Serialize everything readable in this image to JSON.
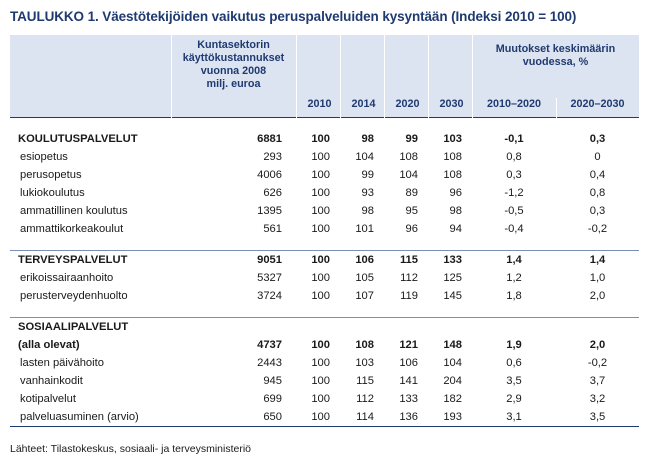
{
  "title": "TAULUKKO 1. Väestötekijöiden vaikutus peruspalveluiden kysyntään (Indeksi 2010 = 100)",
  "headers": {
    "spend_line1": "Kuntasektorin",
    "spend_line2": "käyttökustannukset",
    "spend_line3": "vuonna 2008",
    "spend_line4": "milj. euroa",
    "y2010": "2010",
    "y2014": "2014",
    "y2020": "2020",
    "y2030": "2030",
    "change_line1": "Muutokset keskimäärin",
    "change_line2": "vuodessa, %",
    "p1": "2010–2020",
    "p2": "2020–2030"
  },
  "groups": [
    {
      "category": {
        "label": "KOULUTUSPALVELUT",
        "spend": "6881",
        "y2010": "100",
        "y2014": "98",
        "y2020": "99",
        "y2030": "103",
        "c1": "-0,1",
        "c2": "0,3"
      },
      "rows": [
        {
          "label": "esiopetus",
          "spend": "293",
          "y2010": "100",
          "y2014": "104",
          "y2020": "108",
          "y2030": "108",
          "c1": "0,8",
          "c2": "0"
        },
        {
          "label": "perusopetus",
          "spend": "4006",
          "y2010": "100",
          "y2014": "99",
          "y2020": "104",
          "y2030": "108",
          "c1": "0,3",
          "c2": "0,4"
        },
        {
          "label": "lukiokoulutus",
          "spend": "626",
          "y2010": "100",
          "y2014": "93",
          "y2020": "89",
          "y2030": "96",
          "c1": "-1,2",
          "c2": "0,8"
        },
        {
          "label": "ammatillinen koulutus",
          "spend": "1395",
          "y2010": "100",
          "y2014": "98",
          "y2020": "95",
          "y2030": "98",
          "c1": "-0,5",
          "c2": "0,3"
        },
        {
          "label": "ammattikorkeakoulut",
          "spend": "561",
          "y2010": "100",
          "y2014": "101",
          "y2020": "96",
          "y2030": "94",
          "c1": "-0,4",
          "c2": "-0,2"
        }
      ]
    },
    {
      "category": {
        "label": "TERVEYSPALVELUT",
        "spend": "9051",
        "y2010": "100",
        "y2014": "106",
        "y2020": "115",
        "y2030": "133",
        "c1": "1,4",
        "c2": "1,4"
      },
      "rows": [
        {
          "label": "erikoissairaanhoito",
          "spend": "5327",
          "y2010": "100",
          "y2014": "105",
          "y2020": "112",
          "y2030": "125",
          "c1": "1,2",
          "c2": "1,0"
        },
        {
          "label": "perusterveydenhuolto",
          "spend": "3724",
          "y2010": "100",
          "y2014": "107",
          "y2020": "119",
          "y2030": "145",
          "c1": "1,8",
          "c2": "2,0"
        }
      ]
    },
    {
      "category": {
        "label": "SOSIAALIPALVELUT",
        "label2": "(alla olevat)",
        "spend": "4737",
        "y2010": "100",
        "y2014": "108",
        "y2020": "121",
        "y2030": "148",
        "c1": "1,9",
        "c2": "2,0"
      },
      "rows": [
        {
          "label": "lasten päivähoito",
          "spend": "2443",
          "y2010": "100",
          "y2014": "103",
          "y2020": "106",
          "y2030": "104",
          "c1": "0,6",
          "c2": "-0,2"
        },
        {
          "label": "vanhainkodit",
          "spend": "945",
          "y2010": "100",
          "y2014": "115",
          "y2020": "141",
          "y2030": "204",
          "c1": "3,5",
          "c2": "3,7"
        },
        {
          "label": "kotipalvelut",
          "spend": "699",
          "y2010": "100",
          "y2014": "112",
          "y2020": "133",
          "y2030": "182",
          "c1": "2,9",
          "c2": "3,2"
        },
        {
          "label": "palveluasuminen (arvio)",
          "spend": "650",
          "y2010": "100",
          "y2014": "114",
          "y2020": "136",
          "y2030": "193",
          "c1": "3,1",
          "c2": "3,5"
        }
      ]
    }
  ],
  "source": "Lähteet: Tilastokeskus, sosiaali- ja terveysministeriö"
}
